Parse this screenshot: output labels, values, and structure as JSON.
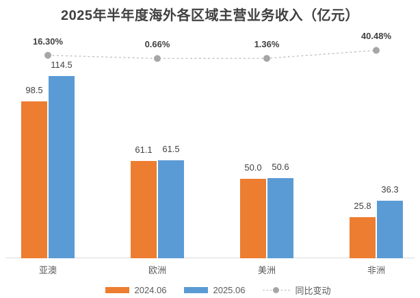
{
  "title": "2025年半年度海外各区域主营业务收入（亿元）",
  "chart_data": {
    "type": "bar",
    "title": "2025年半年度海外各区域主营业务收入（亿元）",
    "categories": [
      "亚澳",
      "欧洲",
      "美洲",
      "非洲"
    ],
    "series": [
      {
        "name": "2024.06",
        "type": "bar",
        "color": "#ED7D31",
        "values": [
          98.5,
          61.1,
          50.0,
          25.8
        ],
        "labels": [
          "98.5",
          "61.1",
          "50.0",
          "25.8"
        ]
      },
      {
        "name": "2025.06",
        "type": "bar",
        "color": "#5B9BD5",
        "values": [
          114.5,
          61.5,
          50.6,
          36.3
        ],
        "labels": [
          "114.5",
          "61.5",
          "50.6",
          "36.3"
        ]
      },
      {
        "name": "同比变动",
        "type": "line",
        "marker_color": "#A6A6A6",
        "line_color": "#BFBFBF",
        "values": [
          16.3,
          0.66,
          1.36,
          40.48
        ],
        "labels": [
          "16.30%",
          "0.66%",
          "1.36%",
          "40.48%"
        ]
      }
    ],
    "legend_position": "bottom",
    "grid": false,
    "value_axis_visible": false
  },
  "colors": {
    "background": "#FFFFFF",
    "title_text": "#404040",
    "data_label_text": "#404040",
    "category_text": "#595959",
    "axis_line": "#D9D9D9",
    "bar_2024": "#ED7D31",
    "bar_2025": "#5B9BD5",
    "line": "#BFBFBF",
    "marker": "#A6A6A6"
  }
}
